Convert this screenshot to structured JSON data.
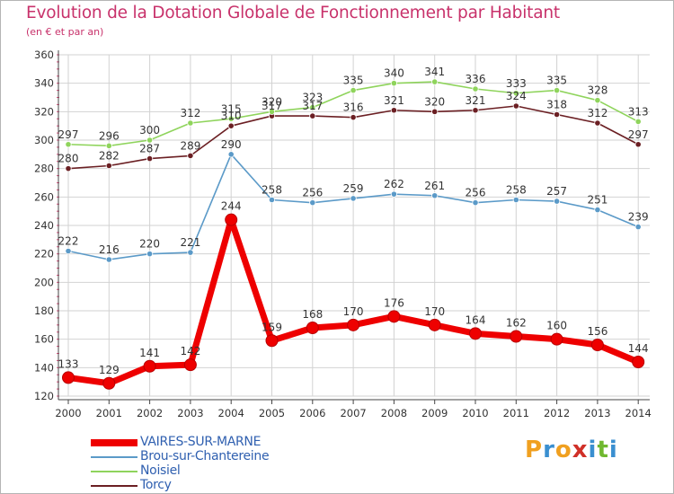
{
  "chart_data": {
    "type": "line",
    "title": "Evolution de la Dotation Globale de Fonctionnement par Habitant",
    "subtitle": "(en € et par an)",
    "xlabel": "",
    "ylabel": "",
    "x": [
      "2000",
      "2001",
      "2002",
      "2003",
      "2004",
      "2005",
      "2006",
      "2007",
      "2008",
      "2009",
      "2010",
      "2011",
      "2012",
      "2013",
      "2014"
    ],
    "ylim": [
      120,
      360
    ],
    "yticks": [
      120,
      140,
      160,
      180,
      200,
      220,
      240,
      260,
      280,
      300,
      320,
      340,
      360
    ],
    "grid": true,
    "legend_position": "bottom-left",
    "series": [
      {
        "name": "Torcy",
        "color": "#6b1f23",
        "emphasis": false,
        "values": [
          280,
          282,
          287,
          289,
          310,
          317,
          317,
          316,
          321,
          320,
          321,
          324,
          318,
          312,
          297
        ]
      },
      {
        "name": "Noisiel",
        "color": "#8fd45c",
        "emphasis": false,
        "values": [
          297,
          296,
          300,
          312,
          315,
          320,
          323,
          335,
          340,
          341,
          336,
          333,
          335,
          328,
          313
        ]
      },
      {
        "name": "Brou-sur-Chantereine",
        "color": "#5b9ac8",
        "emphasis": false,
        "values": [
          222,
          216,
          220,
          221,
          290,
          258,
          256,
          259,
          262,
          261,
          256,
          258,
          257,
          251,
          239
        ]
      },
      {
        "name": "VAIRES-SUR-MARNE",
        "color": "#ee0000",
        "emphasis": true,
        "values": [
          133,
          129,
          141,
          142,
          244,
          159,
          168,
          170,
          176,
          170,
          164,
          162,
          160,
          156,
          144
        ]
      }
    ],
    "legend_order": [
      "VAIRES-SUR-MARNE",
      "Brou-sur-Chantereine",
      "Noisiel",
      "Torcy"
    ]
  },
  "logo": {
    "letters": [
      "P",
      "r",
      "o",
      "x",
      "i",
      "t",
      "i"
    ],
    "colors": [
      "#f0a020",
      "#3a8fd0",
      "#f0a020",
      "#d03028",
      "#3a8fd0",
      "#70b830",
      "#3a8fd0"
    ]
  }
}
